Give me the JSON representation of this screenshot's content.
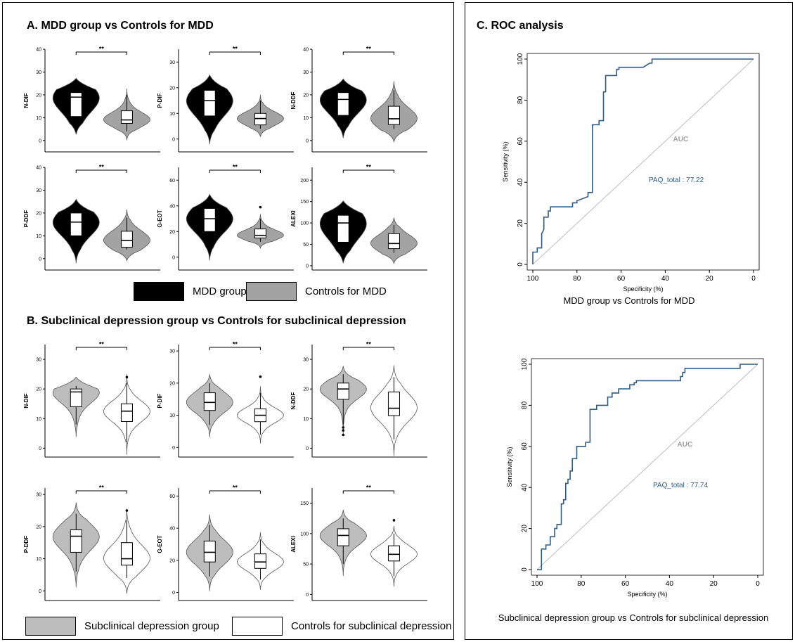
{
  "figure": {
    "panel_a_title": "A. MDD group vs Controls for MDD",
    "panel_b_title": "B. Subclinical depression group vs Controls for subclinical depression",
    "panel_c_title": "C. ROC analysis",
    "legend_a": [
      {
        "label": "MDD group",
        "color": "#000000"
      },
      {
        "label": "Controls for MDD",
        "color": "#a3a3a3"
      }
    ],
    "legend_b": [
      {
        "label": "Subclinical depression group",
        "color": "#bdbdbd"
      },
      {
        "label": "Controls for subclinical depression",
        "color": "#ffffff"
      }
    ],
    "roc_caption_1": "MDD group vs Controls for MDD",
    "roc_caption_2": "Subclinical depression group vs Controls for subclinical depression"
  },
  "chart_data": [
    {
      "type": "violin",
      "panel": "A",
      "ylabel": "N-DIF",
      "ylim": [
        -5,
        40
      ],
      "yticks": [
        0,
        10,
        20,
        30,
        40
      ],
      "significance": "**",
      "fill": [
        "#000000",
        "#a3a3a3"
      ],
      "groups": [
        {
          "name": "MDD group",
          "min": 10,
          "q1": 10.5,
          "median": 19,
          "q3": 21,
          "max": 22,
          "outliers": []
        },
        {
          "name": "Controls for MDD",
          "min": 4,
          "q1": 7.5,
          "median": 9,
          "q3": 13,
          "max": 20,
          "outliers": []
        }
      ]
    },
    {
      "type": "violin",
      "panel": "A",
      "ylabel": "P-DIF",
      "ylim": [
        -5,
        35
      ],
      "yticks": [
        0,
        10,
        20,
        30
      ],
      "significance": "**",
      "fill": [
        "#000000",
        "#a3a3a3"
      ],
      "groups": [
        {
          "name": "MDD group",
          "min": 5,
          "q1": 9,
          "median": 15,
          "q3": 19,
          "max": 20,
          "outliers": []
        },
        {
          "name": "Controls for MDD",
          "min": 4,
          "q1": 5.5,
          "median": 8,
          "q3": 10,
          "max": 15,
          "outliers": []
        }
      ]
    },
    {
      "type": "violin",
      "panel": "A",
      "ylabel": "N-DDF",
      "ylim": [
        -5,
        40
      ],
      "yticks": [
        0,
        10,
        20,
        30,
        40
      ],
      "significance": "**",
      "fill": [
        "#000000",
        "#a3a3a3"
      ],
      "groups": [
        {
          "name": "MDD group",
          "min": 8,
          "q1": 11,
          "median": 18,
          "q3": 21,
          "max": 22,
          "outliers": []
        },
        {
          "name": "Controls for MDD",
          "min": 5,
          "q1": 7,
          "median": 9.5,
          "q3": 15,
          "max": 22,
          "outliers": []
        }
      ]
    },
    {
      "type": "violin",
      "panel": "A",
      "ylabel": "P-DDF",
      "ylim": [
        -5,
        40
      ],
      "yticks": [
        0,
        10,
        20,
        30,
        40
      ],
      "significance": "**",
      "fill": [
        "#000000",
        "#a3a3a3"
      ],
      "groups": [
        {
          "name": "MDD group",
          "min": 5,
          "q1": 10,
          "median": 16,
          "q3": 20,
          "max": 21,
          "outliers": []
        },
        {
          "name": "Controls for MDD",
          "min": 4,
          "q1": 5,
          "median": 8,
          "q3": 12,
          "max": 18,
          "outliers": []
        }
      ]
    },
    {
      "type": "violin",
      "panel": "A",
      "ylabel": "G-EOT",
      "ylim": [
        -10,
        70
      ],
      "yticks": [
        0,
        20,
        40,
        60
      ],
      "significance": "**",
      "fill": [
        "#000000",
        "#a3a3a3"
      ],
      "groups": [
        {
          "name": "MDD group",
          "min": 10,
          "q1": 20,
          "median": 30,
          "q3": 38,
          "max": 40,
          "outliers": []
        },
        {
          "name": "Controls for MDD",
          "min": 12,
          "q1": 15,
          "median": 17,
          "q3": 22,
          "max": 30,
          "outliers": [
            39
          ]
        }
      ]
    },
    {
      "type": "violin",
      "panel": "A",
      "ylabel": "ALEXI",
      "ylim": [
        -10,
        230
      ],
      "yticks": [
        0,
        50,
        100,
        150,
        200
      ],
      "significance": "**",
      "fill": [
        "#000000",
        "#a3a3a3"
      ],
      "groups": [
        {
          "name": "MDD group",
          "min": 50,
          "q1": 55,
          "median": 100,
          "q3": 118,
          "max": 120,
          "outliers": []
        },
        {
          "name": "Controls for MDD",
          "min": 30,
          "q1": 40,
          "median": 52,
          "q3": 75,
          "max": 95,
          "outliers": []
        }
      ]
    },
    {
      "type": "violin",
      "panel": "B",
      "ylabel": "N-DIF",
      "ylim": [
        -3,
        35
      ],
      "yticks": [
        0,
        10,
        20,
        30
      ],
      "significance": "**",
      "fill": [
        "#bdbdbd",
        "#ffffff"
      ],
      "groups": [
        {
          "name": "Subclinical depression group",
          "min": 8,
          "q1": 14,
          "median": 19,
          "q3": 20,
          "max": 21,
          "outliers": []
        },
        {
          "name": "Controls for subclinical depression",
          "min": 2,
          "q1": 9,
          "median": 12.5,
          "q3": 15,
          "max": 22,
          "outliers": [
            24
          ]
        }
      ]
    },
    {
      "type": "violin",
      "panel": "B",
      "ylabel": "P-DIF",
      "ylim": [
        -3,
        32
      ],
      "yticks": [
        0,
        10,
        20,
        30
      ],
      "significance": "**",
      "fill": [
        "#bdbdbd",
        "#ffffff"
      ],
      "groups": [
        {
          "name": "Subclinical depression group",
          "min": 7,
          "q1": 11.5,
          "median": 14,
          "q3": 17,
          "max": 20,
          "outliers": []
        },
        {
          "name": "Controls for subclinical depression",
          "min": 4,
          "q1": 8,
          "median": 10,
          "q3": 12,
          "max": 17,
          "outliers": [
            22
          ]
        }
      ]
    },
    {
      "type": "violin",
      "panel": "B",
      "ylabel": "N-DDF",
      "ylim": [
        -3,
        35
      ],
      "yticks": [
        0,
        10,
        20,
        30
      ],
      "significance": "**",
      "fill": [
        "#bdbdbd",
        "#ffffff"
      ],
      "groups": [
        {
          "name": "Subclinical depression group",
          "min": 8,
          "q1": 16.5,
          "median": 20,
          "q3": 22,
          "max": 25,
          "outliers": [
            4.5,
            6,
            7
          ]
        },
        {
          "name": "Controls for subclinical depression",
          "min": 3,
          "q1": 11,
          "median": 13.5,
          "q3": 19,
          "max": 24,
          "outliers": []
        }
      ]
    },
    {
      "type": "violin",
      "panel": "B",
      "ylabel": "P-DDF",
      "ylim": [
        -3,
        32
      ],
      "yticks": [
        0,
        10,
        20,
        30
      ],
      "significance": "**",
      "fill": [
        "#bdbdbd",
        "#ffffff"
      ],
      "groups": [
        {
          "name": "Subclinical depression group",
          "min": 6,
          "q1": 12,
          "median": 17,
          "q3": 19,
          "max": 24,
          "outliers": []
        },
        {
          "name": "Controls for subclinical depression",
          "min": 4,
          "q1": 8,
          "median": 10,
          "q3": 15,
          "max": 22,
          "outliers": [
            25
          ]
        }
      ]
    },
    {
      "type": "violin",
      "panel": "B",
      "ylabel": "G-EOT",
      "ylim": [
        -5,
        65
      ],
      "yticks": [
        0,
        20,
        40,
        60
      ],
      "significance": "**",
      "fill": [
        "#bdbdbd",
        "#ffffff"
      ],
      "groups": [
        {
          "name": "Subclinical depression group",
          "min": 10,
          "q1": 19,
          "median": 25,
          "q3": 32,
          "max": 42,
          "outliers": []
        },
        {
          "name": "Controls for subclinical depression",
          "min": 8,
          "q1": 15,
          "median": 19,
          "q3": 24,
          "max": 33,
          "outliers": []
        }
      ]
    },
    {
      "type": "violin",
      "panel": "B",
      "ylabel": "ALEXI",
      "ylim": [
        -10,
        175
      ],
      "yticks": [
        0,
        50,
        100,
        150
      ],
      "significance": "**",
      "fill": [
        "#bdbdbd",
        "#ffffff"
      ],
      "groups": [
        {
          "name": "Subclinical depression group",
          "min": 50,
          "q1": 80,
          "median": 97,
          "q3": 108,
          "max": 125,
          "outliers": []
        },
        {
          "name": "Controls for subclinical depression",
          "min": 30,
          "q1": 55,
          "median": 66,
          "q3": 80,
          "max": 100,
          "outliers": [
            122
          ]
        }
      ]
    },
    {
      "type": "line",
      "panel": "C",
      "title": "MDD group vs Controls for MDD",
      "xlabel": "Specificity (%)",
      "ylabel": "Sensitivity (%)",
      "xlim": [
        100,
        0
      ],
      "ylim": [
        0,
        100
      ],
      "xticks": [
        100,
        80,
        60,
        40,
        20,
        0
      ],
      "yticks": [
        0,
        20,
        40,
        60,
        80,
        100
      ],
      "annotation_title": "AUC",
      "annotation": "PAQ_total : 77.22",
      "line_color": "#2f5b86",
      "diagonal_color": "#bdbdbd",
      "x": [
        100,
        100,
        98,
        98,
        96,
        96,
        95,
        95,
        93,
        93,
        92,
        92,
        90,
        90,
        82,
        82,
        80,
        80,
        75,
        75,
        73,
        73,
        70,
        70,
        68,
        68,
        67,
        67,
        65,
        65,
        62,
        62,
        61,
        61,
        57,
        57,
        53,
        53,
        50,
        47,
        46,
        46,
        0
      ],
      "y": [
        0,
        6,
        6,
        8,
        8,
        15,
        17,
        23,
        23,
        26,
        26,
        28,
        28,
        28,
        28,
        30,
        30,
        31,
        33,
        35,
        35,
        68,
        68,
        70,
        70,
        84,
        84,
        92,
        92,
        92,
        92,
        95,
        95,
        96,
        96,
        96,
        96,
        96,
        96,
        98,
        98,
        100,
        100
      ]
    },
    {
      "type": "line",
      "panel": "C",
      "title": "Subclinical depression group vs Controls for subclinical depression",
      "xlabel": "Specificity (%)",
      "ylabel": "Sensitivity (%)",
      "xlim": [
        100,
        0
      ],
      "ylim": [
        0,
        100
      ],
      "xticks": [
        100,
        80,
        60,
        40,
        20,
        0
      ],
      "yticks": [
        0,
        20,
        40,
        60,
        80,
        100
      ],
      "annotation_title": "AUC",
      "annotation": "PAQ_total : 77.74",
      "line_color": "#2f5b86",
      "diagonal_color": "#bdbdbd",
      "x": [
        100,
        98,
        98,
        96,
        96,
        94,
        94,
        92,
        92,
        91,
        91,
        89,
        89,
        88,
        88,
        87,
        87,
        86,
        86,
        85,
        85,
        84,
        84,
        82,
        82,
        78,
        78,
        76,
        76,
        73,
        73,
        68,
        68,
        66,
        66,
        63,
        63,
        58,
        58,
        56,
        56,
        55,
        55,
        51,
        51,
        35,
        35,
        34,
        34,
        33,
        33,
        8,
        8,
        0
      ],
      "y": [
        0,
        0,
        10,
        10,
        12,
        12,
        16,
        16,
        20,
        20,
        22,
        22,
        32,
        32,
        34,
        34,
        42,
        42,
        44,
        44,
        48,
        48,
        54,
        54,
        60,
        60,
        62,
        62,
        78,
        78,
        80,
        80,
        84,
        84,
        86,
        86,
        88,
        88,
        90,
        90,
        91,
        91,
        92,
        92,
        92,
        92,
        94,
        94,
        96,
        96,
        98,
        98,
        100,
        100
      ]
    }
  ]
}
